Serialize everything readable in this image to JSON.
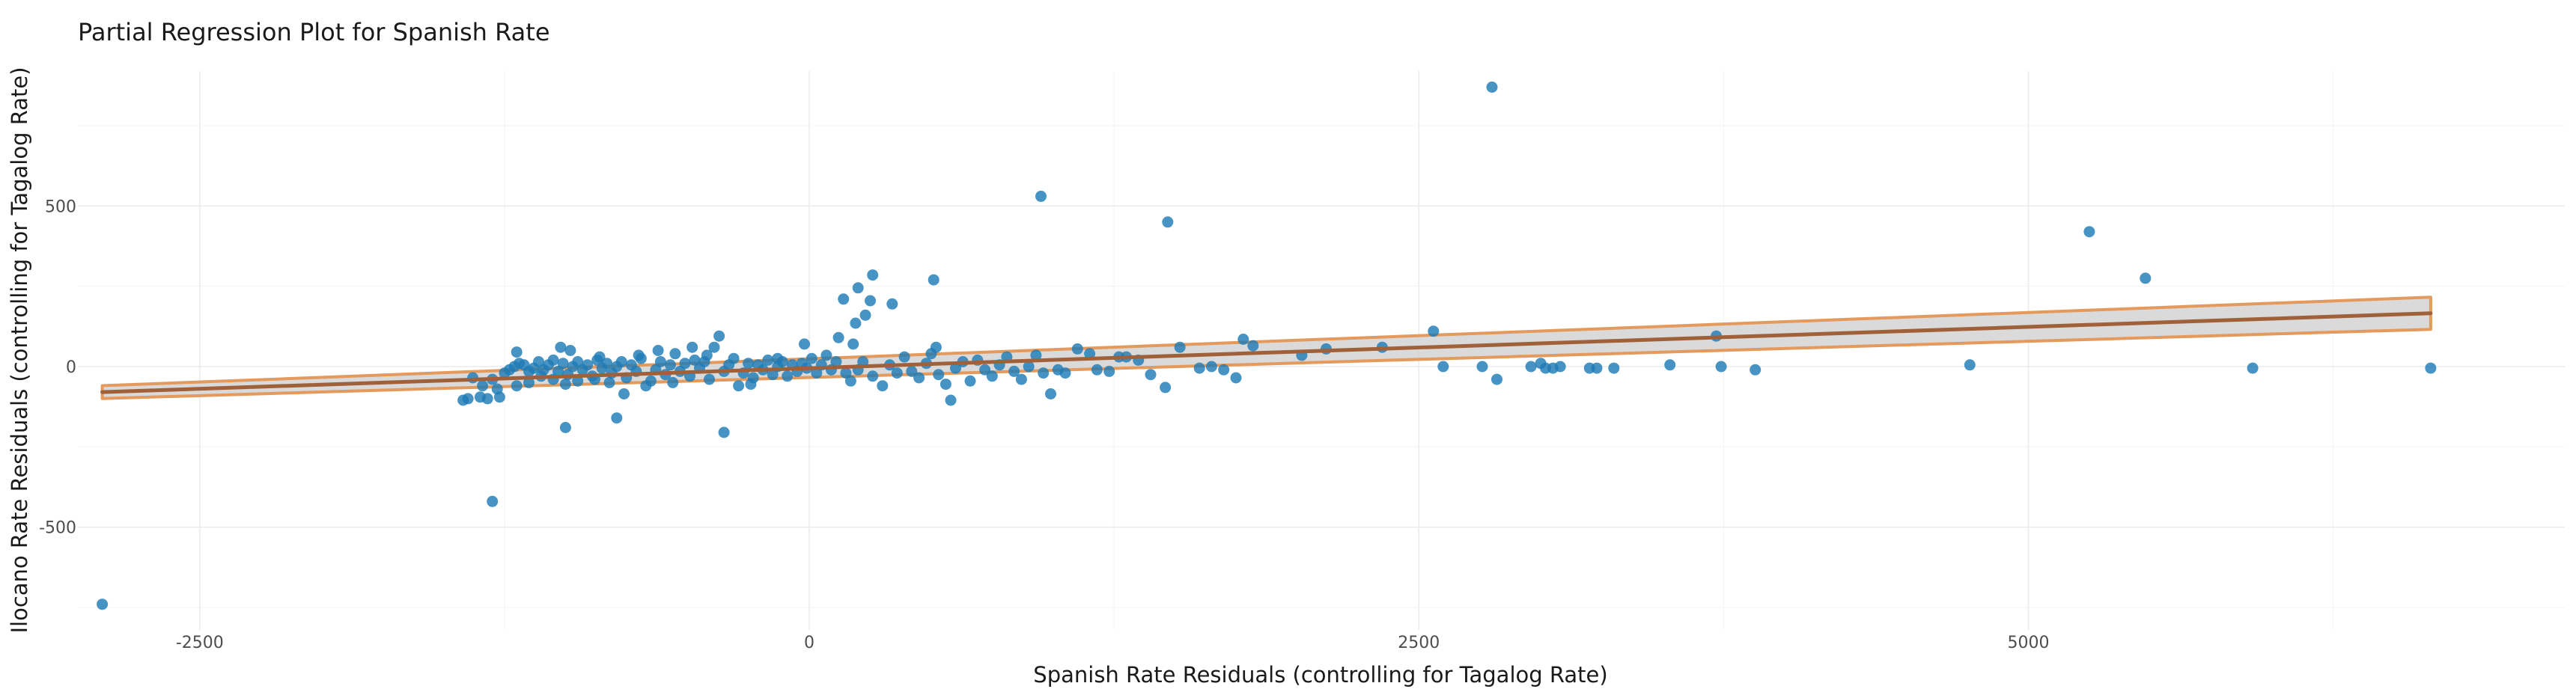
{
  "chart_data": {
    "type": "scatter",
    "title": "Partial Regression Plot for Spanish Rate",
    "xlabel": "Spanish Rate Residuals (controlling for Tagalog Rate)",
    "ylabel": "Ilocano Rate Residuals (controlling for Tagalog Rate)",
    "xlim": [
      -3000,
      7200
    ],
    "ylim": [
      -820,
      920
    ],
    "x_ticks": [
      -2500,
      0,
      2500,
      5000
    ],
    "y_ticks": [
      -500,
      0,
      500
    ],
    "grid": true,
    "colors": {
      "points": "#1f7bb6",
      "fit_line": "#a0603a",
      "band_fill": "#d3d3d3",
      "band_edge": "#e39a5c"
    },
    "fit": {
      "intercept": -5,
      "slope": 0.0257,
      "band_halfwidth_at_min": 20,
      "band_halfwidth_at_max": 50,
      "x_range": [
        -2900,
        6650
      ]
    },
    "points": [
      [
        -2900,
        -740
      ],
      [
        -1300,
        -420
      ],
      [
        -1000,
        -190
      ],
      [
        -790,
        -160
      ],
      [
        -350,
        -205
      ],
      [
        950,
        530
      ],
      [
        1470,
        450
      ],
      [
        2800,
        870
      ],
      [
        5250,
        420
      ],
      [
        5480,
        275
      ],
      [
        260,
        285
      ],
      [
        200,
        245
      ],
      [
        250,
        205
      ],
      [
        140,
        210
      ],
      [
        340,
        195
      ],
      [
        510,
        270
      ],
      [
        230,
        160
      ],
      [
        190,
        135
      ],
      [
        120,
        90
      ],
      [
        180,
        70
      ],
      [
        520,
        60
      ],
      [
        -1320,
        -100
      ],
      [
        -1270,
        -95
      ],
      [
        -1350,
        -95
      ],
      [
        -1200,
        -60
      ],
      [
        -1150,
        -50
      ],
      [
        -1100,
        -30
      ],
      [
        -1050,
        -40
      ],
      [
        -1000,
        -55
      ],
      [
        -950,
        -45
      ],
      [
        -1300,
        -40
      ],
      [
        -1250,
        -20
      ],
      [
        -1230,
        -10
      ],
      [
        -1210,
        0
      ],
      [
        -1190,
        10
      ],
      [
        -1170,
        5
      ],
      [
        -1150,
        -15
      ],
      [
        -1130,
        -5
      ],
      [
        -1110,
        15
      ],
      [
        -1090,
        -10
      ],
      [
        -1070,
        5
      ],
      [
        -1050,
        20
      ],
      [
        -1030,
        -15
      ],
      [
        -1010,
        10
      ],
      [
        -990,
        -25
      ],
      [
        -970,
        0
      ],
      [
        -950,
        15
      ],
      [
        -930,
        -10
      ],
      [
        -910,
        5
      ],
      [
        -890,
        -30
      ],
      [
        -870,
        20
      ],
      [
        -850,
        -5
      ],
      [
        -830,
        10
      ],
      [
        -810,
        -20
      ],
      [
        -790,
        0
      ],
      [
        -770,
        15
      ],
      [
        -750,
        -35
      ],
      [
        -730,
        5
      ],
      [
        -710,
        -15
      ],
      [
        -690,
        25
      ],
      [
        -670,
        -60
      ],
      [
        -650,
        -45
      ],
      [
        -630,
        -10
      ],
      [
        -610,
        15
      ],
      [
        -590,
        -25
      ],
      [
        -570,
        5
      ],
      [
        -550,
        40
      ],
      [
        -530,
        -15
      ],
      [
        -510,
        10
      ],
      [
        -490,
        -30
      ],
      [
        -470,
        20
      ],
      [
        -450,
        -5
      ],
      [
        -430,
        15
      ],
      [
        -410,
        -40
      ],
      [
        -390,
        60
      ],
      [
        -370,
        95
      ],
      [
        -350,
        -15
      ],
      [
        -330,
        5
      ],
      [
        -310,
        25
      ],
      [
        -290,
        -60
      ],
      [
        -270,
        -20
      ],
      [
        -250,
        10
      ],
      [
        -230,
        -35
      ],
      [
        -210,
        5
      ],
      [
        -190,
        -10
      ],
      [
        -170,
        20
      ],
      [
        -150,
        -25
      ],
      [
        -130,
        0
      ],
      [
        -110,
        15
      ],
      [
        -90,
        -30
      ],
      [
        -70,
        5
      ],
      [
        -50,
        -15
      ],
      [
        -30,
        10
      ],
      [
        -10,
        -5
      ],
      [
        10,
        25
      ],
      [
        30,
        -20
      ],
      [
        50,
        5
      ],
      [
        70,
        35
      ],
      [
        90,
        -10
      ],
      [
        110,
        15
      ],
      [
        -1200,
        45
      ],
      [
        -1020,
        60
      ],
      [
        -980,
        50
      ],
      [
        -860,
        30
      ],
      [
        -700,
        35
      ],
      [
        -620,
        50
      ],
      [
        -480,
        60
      ],
      [
        -420,
        35
      ],
      [
        -130,
        25
      ],
      [
        -20,
        70
      ],
      [
        150,
        -20
      ],
      [
        170,
        -45
      ],
      [
        200,
        -10
      ],
      [
        220,
        15
      ],
      [
        260,
        -30
      ],
      [
        300,
        -60
      ],
      [
        330,
        5
      ],
      [
        360,
        -20
      ],
      [
        390,
        30
      ],
      [
        420,
        -15
      ],
      [
        450,
        -35
      ],
      [
        480,
        10
      ],
      [
        500,
        40
      ],
      [
        530,
        -25
      ],
      [
        560,
        -55
      ],
      [
        580,
        -105
      ],
      [
        600,
        -5
      ],
      [
        630,
        15
      ],
      [
        660,
        -45
      ],
      [
        690,
        20
      ],
      [
        720,
        -10
      ],
      [
        750,
        -30
      ],
      [
        780,
        5
      ],
      [
        810,
        30
      ],
      [
        840,
        -15
      ],
      [
        870,
        -40
      ],
      [
        900,
        0
      ],
      [
        930,
        35
      ],
      [
        960,
        -20
      ],
      [
        990,
        -85
      ],
      [
        1020,
        -10
      ],
      [
        1050,
        -20
      ],
      [
        1100,
        55
      ],
      [
        1150,
        40
      ],
      [
        1180,
        -10
      ],
      [
        1230,
        -15
      ],
      [
        1270,
        30
      ],
      [
        1300,
        30
      ],
      [
        1350,
        20
      ],
      [
        1400,
        -25
      ],
      [
        1460,
        -65
      ],
      [
        1520,
        60
      ],
      [
        1600,
        -5
      ],
      [
        1650,
        0
      ],
      [
        1700,
        -10
      ],
      [
        1750,
        -35
      ],
      [
        1780,
        85
      ],
      [
        1820,
        65
      ],
      [
        2020,
        35
      ],
      [
        2120,
        55
      ],
      [
        2350,
        60
      ],
      [
        2560,
        110
      ],
      [
        2600,
        0
      ],
      [
        2760,
        0
      ],
      [
        2820,
        -40
      ],
      [
        2960,
        0
      ],
      [
        3000,
        10
      ],
      [
        3020,
        -5
      ],
      [
        3050,
        -5
      ],
      [
        3080,
        0
      ],
      [
        3200,
        -5
      ],
      [
        3230,
        -5
      ],
      [
        3300,
        -5
      ],
      [
        3530,
        5
      ],
      [
        3720,
        95
      ],
      [
        3740,
        0
      ],
      [
        3880,
        -10
      ],
      [
        4760,
        5
      ],
      [
        5920,
        -5
      ],
      [
        6650,
        -5
      ],
      [
        -1380,
        -35
      ],
      [
        -1400,
        -100
      ],
      [
        -1420,
        -105
      ],
      [
        -1340,
        -60
      ],
      [
        -1280,
        -70
      ],
      [
        -880,
        -40
      ],
      [
        -820,
        -50
      ],
      [
        -760,
        -85
      ],
      [
        -560,
        -50
      ],
      [
        -240,
        -55
      ]
    ]
  }
}
